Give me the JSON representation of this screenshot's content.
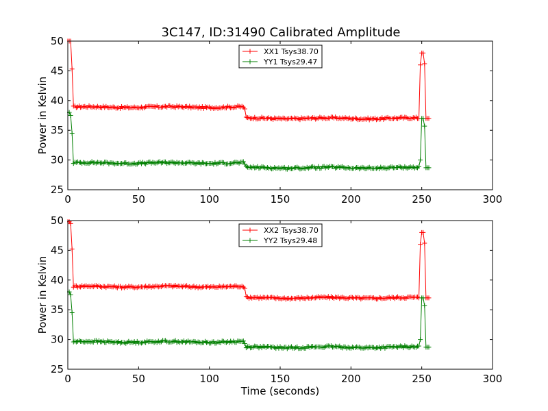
{
  "title": "3C147, ID:31490 Calibrated Amplitude",
  "colors": {
    "red": "#ff0000",
    "green": "#007f00"
  },
  "chart_data": [
    {
      "type": "line",
      "title": "3C147, ID:31490 Calibrated Amplitude",
      "xlabel": "",
      "ylabel": "Power in Kelvin",
      "xlim": [
        0,
        300
      ],
      "ylim": [
        25,
        50
      ],
      "xticks": [
        "0",
        "50",
        "100",
        "150",
        "200",
        "250",
        "300"
      ],
      "yticks": [
        "25",
        "30",
        "35",
        "40",
        "45",
        "50"
      ],
      "legend_position": "top-center",
      "grid": false,
      "series": [
        {
          "name": "XX1 Tsys38.70",
          "color": "#ff0000",
          "segments": [
            {
              "from": 0,
              "to": 1,
              "level": 50.0
            },
            {
              "from": 2,
              "to": 2,
              "level": 50.0
            },
            {
              "from": 3,
              "to": 3,
              "level": 45.3
            },
            {
              "from": 4,
              "to": 124,
              "level": 38.9
            },
            {
              "from": 125,
              "to": 125,
              "level": 38.6
            },
            {
              "from": 126,
              "to": 248,
              "level": 37.0
            },
            {
              "from": 249,
              "to": 249,
              "level": 46.0
            },
            {
              "from": 250,
              "to": 251,
              "level": 48.0
            },
            {
              "from": 252,
              "to": 252,
              "level": 46.2
            },
            {
              "from": 253,
              "to": 255,
              "level": 37.0
            }
          ]
        },
        {
          "name": "YY1 Tsys29.47",
          "color": "#007f00",
          "segments": [
            {
              "from": 0,
              "to": 1,
              "level": 38.0
            },
            {
              "from": 2,
              "to": 2,
              "level": 37.5
            },
            {
              "from": 3,
              "to": 3,
              "level": 34.5
            },
            {
              "from": 4,
              "to": 124,
              "level": 29.5
            },
            {
              "from": 125,
              "to": 125,
              "level": 29.3
            },
            {
              "from": 126,
              "to": 248,
              "level": 28.7
            },
            {
              "from": 249,
              "to": 249,
              "level": 30.0
            },
            {
              "from": 250,
              "to": 251,
              "level": 37.0
            },
            {
              "from": 252,
              "to": 252,
              "level": 35.7
            },
            {
              "from": 253,
              "to": 255,
              "level": 28.7
            }
          ]
        }
      ]
    },
    {
      "type": "line",
      "title": "",
      "xlabel": "Time (seconds)",
      "ylabel": "Power in Kelvin",
      "xlim": [
        0,
        300
      ],
      "ylim": [
        25,
        50
      ],
      "xticks": [
        "0",
        "50",
        "100",
        "150",
        "200",
        "250",
        "300"
      ],
      "yticks": [
        "25",
        "30",
        "35",
        "40",
        "45",
        "50"
      ],
      "legend_position": "top-center",
      "grid": false,
      "series": [
        {
          "name": "XX2 Tsys38.70",
          "color": "#ff0000",
          "segments": [
            {
              "from": 0,
              "to": 1,
              "level": 49.8
            },
            {
              "from": 2,
              "to": 2,
              "level": 49.5
            },
            {
              "from": 3,
              "to": 3,
              "level": 45.2
            },
            {
              "from": 4,
              "to": 124,
              "level": 38.9
            },
            {
              "from": 125,
              "to": 125,
              "level": 38.6
            },
            {
              "from": 126,
              "to": 248,
              "level": 37.0
            },
            {
              "from": 249,
              "to": 249,
              "level": 46.0
            },
            {
              "from": 250,
              "to": 251,
              "level": 48.0
            },
            {
              "from": 252,
              "to": 252,
              "level": 46.2
            },
            {
              "from": 253,
              "to": 255,
              "level": 37.0
            }
          ]
        },
        {
          "name": "YY2 Tsys29.48",
          "color": "#007f00",
          "segments": [
            {
              "from": 0,
              "to": 1,
              "level": 38.0
            },
            {
              "from": 2,
              "to": 2,
              "level": 37.5
            },
            {
              "from": 3,
              "to": 3,
              "level": 34.5
            },
            {
              "from": 4,
              "to": 124,
              "level": 29.6
            },
            {
              "from": 125,
              "to": 125,
              "level": 29.3
            },
            {
              "from": 126,
              "to": 248,
              "level": 28.7
            },
            {
              "from": 249,
              "to": 249,
              "level": 30.0
            },
            {
              "from": 250,
              "to": 251,
              "level": 37.0
            },
            {
              "from": 252,
              "to": 252,
              "level": 35.7
            },
            {
              "from": 253,
              "to": 255,
              "level": 28.7
            }
          ]
        }
      ]
    }
  ]
}
